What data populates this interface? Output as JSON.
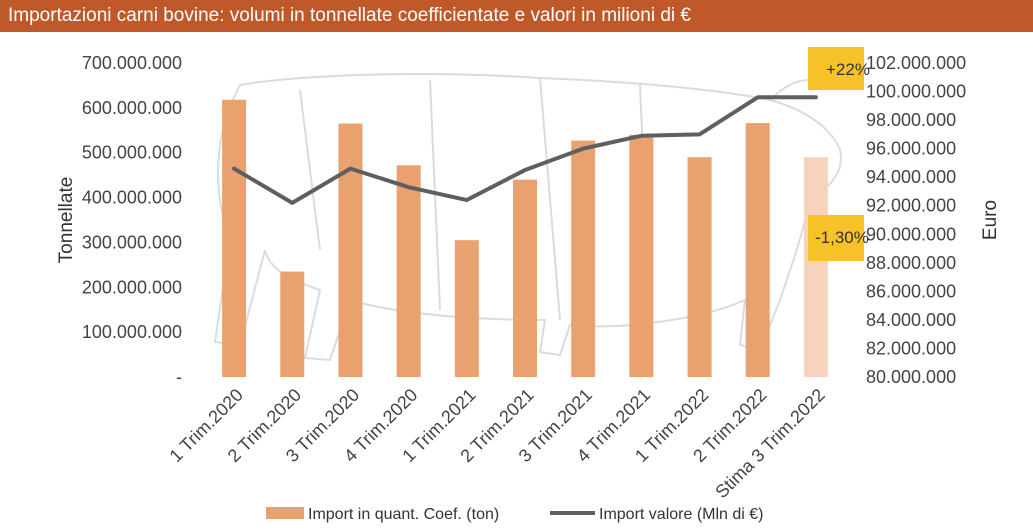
{
  "header": {
    "title": "Importazioni carni bovine: volumi in tonnellate coefficientate e valori in milioni di €"
  },
  "colors": {
    "header_bg": "#c0592a",
    "bar": "#e9a16f",
    "bar_estimate": "#f7d3bd",
    "line": "#5f5f5f",
    "annotation_bg": "#f7c12a"
  },
  "chart_data": {
    "type": "bar",
    "categories": [
      "1 Trim.2020",
      "2 Trim.2020",
      "3 Trim.2020",
      "4 Trim.2020",
      "1 Trim.2021",
      "2 Trim.2021",
      "3 Trim.2021",
      "4 Trim.2021",
      "1 Trim.2022",
      "2 Trim.2022",
      "Stima 3 Trim.2022"
    ],
    "series": [
      {
        "name": "Import in quant. Coef. (ton)",
        "type": "bar",
        "axis": "left",
        "values": [
          618000000,
          235000000,
          565000000,
          472000000,
          305000000,
          440000000,
          527000000,
          540000000,
          490000000,
          566000000,
          490000000
        ]
      },
      {
        "name": "Import valore (Mln di €)",
        "type": "line",
        "axis": "right",
        "values": [
          94600000,
          92200000,
          94600000,
          93300000,
          92400000,
          94500000,
          96000000,
          96900000,
          97000000,
          99600000,
          99600000
        ]
      }
    ],
    "ylabel": "Tonnellate",
    "y2label": "Euro",
    "ylim": [
      0,
      700000000
    ],
    "y2lim": [
      80000000,
      102000000
    ],
    "yticks": [
      "-",
      "100.000.000",
      "200.000.000",
      "300.000.000",
      "400.000.000",
      "500.000.000",
      "600.000.000",
      "700.000.000"
    ],
    "y2ticks": [
      "80.000.000",
      "82.000.000",
      "84.000.000",
      "86.000.000",
      "88.000.000",
      "90.000.000",
      "92.000.000",
      "94.000.000",
      "96.000.000",
      "98.000.000",
      "100.000.000",
      "102.000.000"
    ],
    "annotations": [
      {
        "text": "+22%"
      },
      {
        "text": "-1,30%"
      }
    ],
    "grid": false,
    "legend": "bottom"
  }
}
